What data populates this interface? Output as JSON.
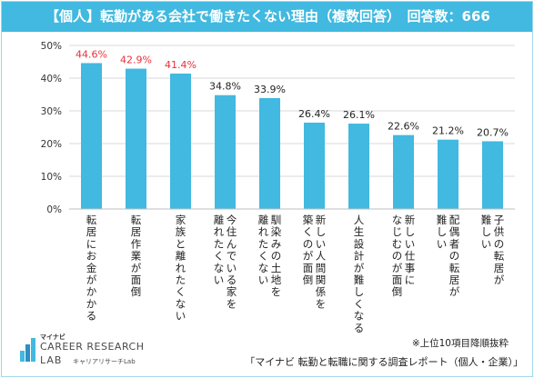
{
  "title": "【個人】転勤がある会社で働きたくない理由（複数回答）　回答数：666",
  "note": "※上位10項目降順抜粋",
  "source": "「マイナビ 転勤と転職に関する調査レポート（個人・企業）」",
  "logo": {
    "small": "マイナビ",
    "line1": "CAREER RESEARCH",
    "line2": "LAB",
    "sub": "キャリアリサーチLab"
  },
  "colors": {
    "bar": "#41b9e0",
    "highlight_label": "#e8313a",
    "normal_label": "#222222",
    "grid": "#d9d9d9",
    "title_bg": "#41b9e0"
  },
  "chart_data": {
    "type": "bar",
    "title": "【個人】転勤がある会社で働きたくない理由（複数回答）　回答数：666",
    "categories": [
      "転居にお金がかかる",
      "転居作業が面倒",
      "家族と離れたくない",
      "今住んでいる家を離れたくない",
      "馴染みの土地を離れたくない",
      "新しい人間関係を築くのが面倒",
      "人生設計が難しくなる",
      "新しい仕事になじむのが面倒",
      "配偶者の転居が難しい",
      "子供の転居が難しい"
    ],
    "category_lines": [
      [
        "転居にお金がかかる"
      ],
      [
        "転居作業が面倒"
      ],
      [
        "家族と離れたくない"
      ],
      [
        "今住んでいる家を",
        "離れたくない"
      ],
      [
        "馴染みの土地を",
        "離れたくない"
      ],
      [
        "新しい人間関係を",
        "築くのが面倒"
      ],
      [
        "人生設計が難しくなる"
      ],
      [
        "新しい仕事に",
        "なじむのが面倒"
      ],
      [
        "配偶者の転居が",
        "難しい"
      ],
      [
        "子供の転居が",
        "難しい"
      ]
    ],
    "values": [
      44.6,
      42.9,
      41.4,
      34.8,
      33.9,
      26.4,
      26.1,
      22.6,
      21.2,
      20.7
    ],
    "value_labels": [
      "44.6%",
      "42.9%",
      "41.4%",
      "34.8%",
      "33.9%",
      "26.4%",
      "26.1%",
      "22.6%",
      "21.2%",
      "20.7%"
    ],
    "highlighted": [
      true,
      true,
      true,
      false,
      false,
      false,
      false,
      false,
      false,
      false
    ],
    "y_ticks": [
      "0%",
      "10%",
      "20%",
      "30%",
      "40%",
      "50%"
    ],
    "ylim": [
      0,
      50
    ],
    "grid": true,
    "xlabel": "",
    "ylabel": ""
  }
}
